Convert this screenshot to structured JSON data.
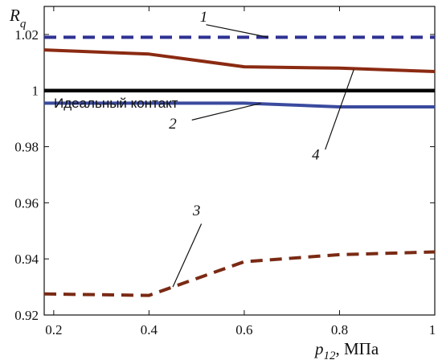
{
  "chart_data": {
    "type": "line",
    "ylabel": {
      "main": "R",
      "sub": "q"
    },
    "xlabel": {
      "main": "p",
      "sub": "12",
      "unit": ", МПа"
    },
    "xlim": [
      0.18,
      1.0
    ],
    "ylim": [
      0.92,
      1.03
    ],
    "xticks": [
      {
        "value": 0.2,
        "label": "0.2"
      },
      {
        "value": 0.4,
        "label": "0.4"
      },
      {
        "value": 0.6,
        "label": "0.6"
      },
      {
        "value": 0.8,
        "label": "0.8"
      },
      {
        "value": 1.0,
        "label": "1"
      }
    ],
    "yticks": [
      {
        "value": 0.92,
        "label": "0.92"
      },
      {
        "value": 0.94,
        "label": "0.94"
      },
      {
        "value": 0.96,
        "label": "0.96"
      },
      {
        "value": 0.98,
        "label": "0.98"
      },
      {
        "value": 1.0,
        "label": "1"
      },
      {
        "value": 1.02,
        "label": "1.02"
      }
    ],
    "series": [
      {
        "label": "1",
        "color": "#2e3192",
        "style": "dashed",
        "x": [
          0.18,
          1.0
        ],
        "y": [
          1.019,
          1.019
        ]
      },
      {
        "label": "2",
        "color": "#3a4a9e",
        "style": "solid",
        "x": [
          0.18,
          0.6,
          0.8,
          1.0
        ],
        "y": [
          0.9955,
          0.9955,
          0.9942,
          0.9942
        ]
      },
      {
        "label": "3",
        "color": "#7a2a14",
        "style": "dashed",
        "x": [
          0.18,
          0.4,
          0.5,
          0.6,
          0.8,
          1.0
        ],
        "y": [
          0.9275,
          0.927,
          0.933,
          0.939,
          0.9415,
          0.9425
        ]
      },
      {
        "label": "4",
        "color": "#8b2a12",
        "style": "solid",
        "x": [
          0.18,
          0.4,
          0.6,
          0.8,
          1.0
        ],
        "y": [
          1.0145,
          1.013,
          1.0085,
          1.008,
          1.0068
        ]
      },
      {
        "label": "Идеальный контакт",
        "color": "#000000",
        "style": "solid",
        "x": [
          0.18,
          1.0
        ],
        "y": [
          1.0,
          1.0
        ]
      }
    ],
    "annotations": [
      {
        "text": "1",
        "text_x": 0.515,
        "text_y": 1.0245,
        "from_x": 0.52,
        "from_y": 1.0235,
        "to_x": 0.65,
        "to_y": 1.019
      },
      {
        "text": "2",
        "text_x": 0.45,
        "text_y": 0.9865,
        "from_x": 0.49,
        "from_y": 0.9895,
        "to_x": 0.635,
        "to_y": 0.9955
      },
      {
        "text": "3",
        "text_x": 0.5,
        "text_y": 0.9555,
        "from_x": 0.51,
        "from_y": 0.9525,
        "to_x": 0.45,
        "to_y": 0.93
      },
      {
        "text": "4",
        "text_x": 0.75,
        "text_y": 0.9755,
        "from_x": 0.77,
        "from_y": 0.979,
        "to_x": 0.83,
        "to_y": 1.0075
      }
    ],
    "ideal_label": "Идеальный контакт",
    "grid": false
  }
}
